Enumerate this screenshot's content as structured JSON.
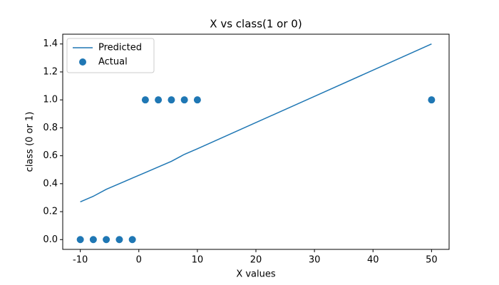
{
  "chart_data": {
    "type": "line",
    "title": "X vs class(1 or 0)",
    "x_label": "X values",
    "y_label": "class (0 or 1)",
    "x": [
      -10,
      -7.78,
      -5.56,
      -3.33,
      -1.11,
      1.11,
      3.33,
      5.56,
      7.78,
      10,
      50
    ],
    "series": [
      {
        "name": "Predicted",
        "type": "line",
        "color": "#1f77b4",
        "values": [
          0.27,
          0.31,
          0.36,
          0.4,
          0.44,
          0.48,
          0.52,
          0.56,
          0.61,
          0.65,
          1.4
        ]
      },
      {
        "name": "Actual",
        "type": "scatter",
        "color": "#1f77b4",
        "values": [
          0,
          0,
          0,
          0,
          0,
          1,
          1,
          1,
          1,
          1,
          1
        ]
      }
    ],
    "xlim": [
      -13,
      53
    ],
    "xticks": [
      -10,
      0,
      10,
      20,
      30,
      40,
      50
    ],
    "ylim": [
      -0.07,
      1.47
    ],
    "yticks": [
      {
        "value": 0,
        "label": "0.0"
      },
      0.2,
      0.4,
      0.6,
      0.8,
      {
        "value": 1,
        "label": "1.0"
      },
      1.2,
      1.4
    ],
    "grid": false,
    "legend": "upper left"
  }
}
